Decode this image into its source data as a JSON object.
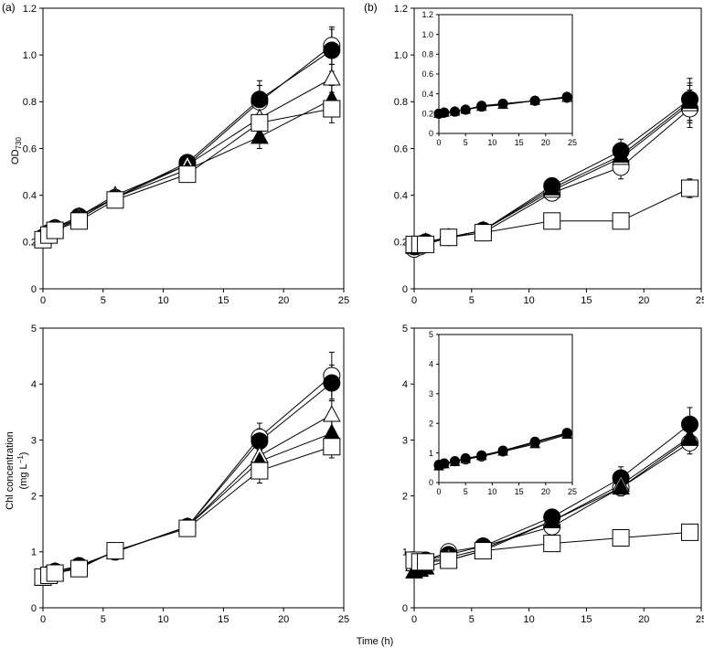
{
  "figure": {
    "panel_labels": [
      "(a)",
      "(b)"
    ],
    "xlabel": "Time (h)",
    "ylabel_top_main": "OD",
    "ylabel_top_sub": "730",
    "ylabel_bottom_line1": "Chl concentration",
    "ylabel_bottom_line2": "(mg L",
    "ylabel_bottom_sup": "−1",
    "ylabel_bottom_close": ")"
  },
  "chart_data": [
    {
      "id": "a-top",
      "type": "line",
      "panel": "(a)",
      "xlim": [
        0,
        25
      ],
      "ylim": [
        0,
        1.2
      ],
      "xticks": [
        0,
        5,
        10,
        15,
        20,
        25
      ],
      "yticks": [
        "0",
        "0.2",
        "0.4",
        "0.6",
        "0.8",
        "1.0",
        "1.2"
      ],
      "x": [
        0,
        0.5,
        1,
        3,
        6,
        12,
        18,
        24
      ],
      "series": [
        {
          "marker": "open-circle",
          "values": [
            0.22,
            0.24,
            0.26,
            0.3,
            0.39,
            0.53,
            0.8,
            1.04
          ],
          "err": [
            0,
            0,
            0,
            0.01,
            0.02,
            0.03,
            0.07,
            0.08
          ]
        },
        {
          "marker": "filled-circle",
          "values": [
            0.22,
            0.24,
            0.26,
            0.31,
            0.39,
            0.54,
            0.81,
            1.02
          ],
          "err": [
            0,
            0,
            0,
            0.01,
            0.02,
            0.03,
            0.08,
            0.09
          ]
        },
        {
          "marker": "open-triangle",
          "values": [
            0.22,
            0.24,
            0.26,
            0.31,
            0.4,
            0.53,
            0.73,
            0.9
          ],
          "err": [
            0,
            0,
            0,
            0.01,
            0.02,
            0.03,
            0.05,
            0.06
          ]
        },
        {
          "marker": "filled-triangle",
          "values": [
            0.21,
            0.23,
            0.25,
            0.3,
            0.39,
            0.51,
            0.65,
            0.81
          ],
          "err": [
            0,
            0,
            0,
            0.01,
            0.02,
            0.03,
            0.05,
            0.06
          ]
        },
        {
          "marker": "open-square",
          "values": [
            0.21,
            0.23,
            0.25,
            0.29,
            0.38,
            0.49,
            0.71,
            0.77
          ],
          "err": [
            0,
            0,
            0,
            0.01,
            0.02,
            0.03,
            0.04,
            0.06
          ]
        }
      ]
    },
    {
      "id": "b-top",
      "type": "line",
      "panel": "(b)",
      "xlim": [
        0,
        25
      ],
      "ylim": [
        0,
        1.2
      ],
      "xticks": [
        0,
        5,
        10,
        15,
        20,
        25
      ],
      "yticks": [
        "0",
        "0.2",
        "0.4",
        "0.6",
        "0.8",
        "1.0",
        "1.2"
      ],
      "x": [
        0,
        0.5,
        1,
        3,
        6,
        12,
        18,
        24
      ],
      "series": [
        {
          "marker": "open-circle",
          "values": [
            0.17,
            0.18,
            0.19,
            0.22,
            0.24,
            0.41,
            0.52,
            0.77
          ],
          "err": [
            0,
            0,
            0,
            0.01,
            0.02,
            0.02,
            0.05,
            0.08
          ]
        },
        {
          "marker": "filled-circle",
          "values": [
            0.18,
            0.19,
            0.2,
            0.22,
            0.25,
            0.44,
            0.59,
            0.81
          ],
          "err": [
            0,
            0,
            0,
            0.01,
            0.02,
            0.03,
            0.05,
            0.09
          ]
        },
        {
          "marker": "open-triangle",
          "values": [
            0.18,
            0.19,
            0.2,
            0.22,
            0.25,
            0.42,
            0.56,
            0.79
          ],
          "err": [
            0,
            0,
            0,
            0.01,
            0.02,
            0.03,
            0.04,
            0.08
          ]
        },
        {
          "marker": "filled-triangle",
          "values": [
            0.18,
            0.19,
            0.2,
            0.22,
            0.25,
            0.43,
            0.57,
            0.8
          ],
          "err": [
            0,
            0,
            0,
            0.01,
            0.02,
            0.03,
            0.04,
            0.08
          ]
        },
        {
          "marker": "open-square",
          "values": [
            0.19,
            0.19,
            0.19,
            0.22,
            0.24,
            0.29,
            0.29,
            0.43
          ],
          "err": [
            0,
            0,
            0,
            0.01,
            0.01,
            0.01,
            0.02,
            0.04
          ]
        }
      ]
    },
    {
      "id": "b-top-inset",
      "type": "line",
      "panel": "(b) inset",
      "xlim": [
        0,
        25
      ],
      "ylim": [
        0,
        1.2
      ],
      "xticks": [
        0,
        5,
        10,
        15,
        20,
        25
      ],
      "yticks": [
        "0",
        "0.2",
        "0.4",
        "0.6",
        "0.8",
        "1.0",
        "1.2"
      ],
      "x": [
        0,
        1,
        3,
        5,
        8,
        12,
        18,
        24
      ],
      "series": [
        {
          "marker": "open-circle",
          "values": [
            0.2,
            0.21,
            0.22,
            0.24,
            0.28,
            0.3,
            0.33,
            0.36
          ],
          "err": [
            0,
            0,
            0,
            0,
            0,
            0,
            0,
            0
          ]
        },
        {
          "marker": "open-triangle",
          "values": [
            0.2,
            0.21,
            0.22,
            0.24,
            0.27,
            0.29,
            0.33,
            0.36
          ],
          "err": [
            0,
            0,
            0,
            0,
            0,
            0,
            0,
            0
          ]
        },
        {
          "marker": "filled-circle",
          "values": [
            0.2,
            0.21,
            0.22,
            0.24,
            0.27,
            0.3,
            0.33,
            0.37
          ],
          "err": [
            0,
            0,
            0,
            0,
            0,
            0,
            0,
            0
          ]
        }
      ]
    },
    {
      "id": "a-bottom",
      "type": "line",
      "panel": "(a)",
      "xlim": [
        0,
        25
      ],
      "ylim": [
        0,
        5
      ],
      "xticks": [
        0,
        5,
        10,
        15,
        20,
        25
      ],
      "yticks": [
        "0",
        "1",
        "2",
        "3",
        "4",
        "5"
      ],
      "x": [
        0,
        0.5,
        1,
        3,
        6,
        12,
        18,
        24
      ],
      "series": [
        {
          "marker": "open-circle",
          "values": [
            0.55,
            0.6,
            0.65,
            0.75,
            1.0,
            1.45,
            3.05,
            4.15
          ],
          "err": [
            0,
            0,
            0,
            0.05,
            0.05,
            0.08,
            0.25,
            0.42
          ]
        },
        {
          "marker": "filled-circle",
          "values": [
            0.55,
            0.6,
            0.65,
            0.75,
            1.0,
            1.45,
            2.98,
            4.02
          ],
          "err": [
            0,
            0,
            0,
            0.05,
            0.05,
            0.08,
            0.22,
            0.32
          ]
        },
        {
          "marker": "open-triangle",
          "values": [
            0.55,
            0.6,
            0.65,
            0.74,
            1.0,
            1.45,
            2.72,
            3.45
          ],
          "err": [
            0,
            0,
            0,
            0.05,
            0.05,
            0.08,
            0.2,
            0.25
          ]
        },
        {
          "marker": "filled-triangle",
          "values": [
            0.52,
            0.57,
            0.62,
            0.73,
            1.0,
            1.45,
            2.62,
            3.12
          ],
          "err": [
            0,
            0,
            0,
            0.05,
            0.05,
            0.08,
            0.2,
            0.22
          ]
        },
        {
          "marker": "open-square",
          "values": [
            0.55,
            0.58,
            0.62,
            0.7,
            1.02,
            1.42,
            2.45,
            2.88
          ],
          "err": [
            0,
            0,
            0,
            0.05,
            0.05,
            0.08,
            0.22,
            0.2
          ]
        }
      ]
    },
    {
      "id": "b-bottom",
      "type": "line",
      "panel": "(b)",
      "xlim": [
        0,
        25
      ],
      "ylim": [
        0,
        5
      ],
      "xticks": [
        0,
        5,
        10,
        15,
        20,
        25
      ],
      "yticks": [
        "0",
        "1",
        "2",
        "3",
        "4",
        "5"
      ],
      "x": [
        0,
        0.5,
        1,
        3,
        6,
        12,
        18,
        24
      ],
      "series": [
        {
          "marker": "open-circle",
          "values": [
            0.8,
            0.82,
            0.85,
            1.0,
            1.1,
            1.45,
            2.15,
            2.95
          ],
          "err": [
            0,
            0,
            0,
            0.05,
            0.08,
            0.1,
            0.15,
            0.2
          ]
        },
        {
          "marker": "filled-circle",
          "values": [
            0.8,
            0.82,
            0.85,
            0.95,
            1.1,
            1.62,
            2.32,
            3.28
          ],
          "err": [
            0,
            0,
            0,
            0.05,
            0.08,
            0.1,
            0.2,
            0.3
          ]
        },
        {
          "marker": "open-triangle",
          "values": [
            0.78,
            0.8,
            0.82,
            0.9,
            1.05,
            1.55,
            2.2,
            3.05
          ],
          "err": [
            0,
            0,
            0,
            0.05,
            0.08,
            0.1,
            0.15,
            0.2
          ]
        },
        {
          "marker": "filled-triangle",
          "values": [
            0.65,
            0.68,
            0.72,
            0.85,
            1.02,
            1.55,
            2.15,
            3.02
          ],
          "err": [
            0,
            0,
            0,
            0.05,
            0.08,
            0.1,
            0.15,
            0.2
          ]
        },
        {
          "marker": "open-square",
          "values": [
            0.85,
            0.82,
            0.82,
            0.85,
            1.02,
            1.15,
            1.25,
            1.35
          ],
          "err": [
            0,
            0,
            0,
            0.05,
            0.05,
            0.05,
            0.05,
            0.05
          ]
        }
      ]
    },
    {
      "id": "b-bottom-inset",
      "type": "line",
      "panel": "(b) inset",
      "xlim": [
        0,
        25
      ],
      "ylim": [
        0,
        5
      ],
      "xticks": [
        0,
        5,
        10,
        15,
        20,
        25
      ],
      "yticks": [
        "0",
        "1",
        "2",
        "3",
        "4",
        "5"
      ],
      "x": [
        0,
        1,
        3,
        5,
        8,
        12,
        18,
        24
      ],
      "series": [
        {
          "marker": "filled-triangle",
          "values": [
            0.55,
            0.62,
            0.7,
            0.8,
            0.9,
            1.05,
            1.3,
            1.62
          ],
          "err": [
            0,
            0,
            0,
            0,
            0,
            0,
            0,
            0
          ]
        },
        {
          "marker": "open-circle",
          "values": [
            0.58,
            0.64,
            0.72,
            0.78,
            0.88,
            1.05,
            1.35,
            1.65
          ],
          "err": [
            0,
            0,
            0,
            0,
            0,
            0,
            0,
            0
          ]
        },
        {
          "marker": "filled-circle",
          "values": [
            0.6,
            0.65,
            0.72,
            0.82,
            0.92,
            1.08,
            1.38,
            1.68
          ],
          "err": [
            0,
            0,
            0,
            0,
            0,
            0,
            0,
            0
          ]
        }
      ]
    }
  ]
}
